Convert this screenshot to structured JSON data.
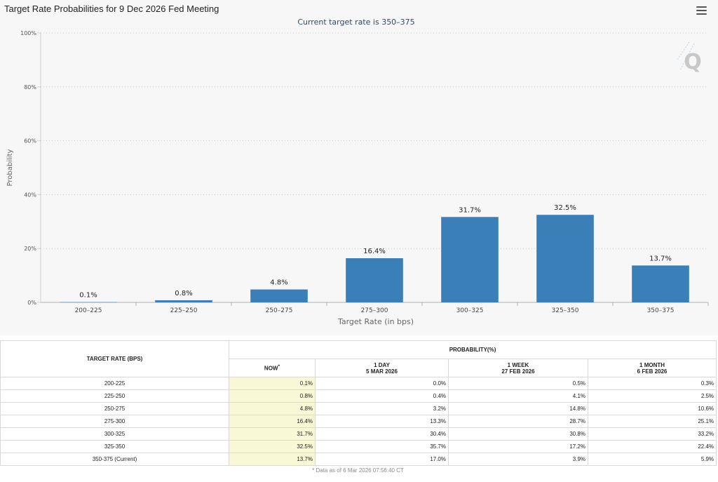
{
  "header": {
    "title": "Target Rate Probabilities for 9 Dec 2026 Fed Meeting",
    "menu_icon": "hamburger-menu-icon",
    "watermark_text": "Q"
  },
  "chart_data": {
    "type": "bar",
    "subtitle": "Current target rate is 350–375",
    "xlabel": "Target Rate (in bps)",
    "ylabel": "Probability",
    "categories": [
      "200–225",
      "225–250",
      "250–275",
      "275–300",
      "300–325",
      "325–350",
      "350–375"
    ],
    "values": [
      0.1,
      0.8,
      4.8,
      16.4,
      31.7,
      32.5,
      13.7
    ],
    "value_labels": [
      "0.1%",
      "0.8%",
      "4.8%",
      "16.4%",
      "31.7%",
      "32.5%",
      "13.7%"
    ],
    "ylim": [
      0,
      100
    ],
    "yticks": [
      0,
      20,
      40,
      60,
      80,
      100
    ],
    "ytick_labels": [
      "0%",
      "20%",
      "40%",
      "60%",
      "80%",
      "100%"
    ],
    "grid": true,
    "bar_color": "#3a7fb8"
  },
  "table": {
    "col_target": "TARGET RATE (BPS)",
    "col_probability": "PROBABILITY(%)",
    "col_now": "NOW",
    "col_now_mark": "*",
    "col_1day": "1 DAY",
    "col_1day_date": "5 MAR 2026",
    "col_1week": "1 WEEK",
    "col_1week_date": "27 FEB 2026",
    "col_1month": "1 MONTH",
    "col_1month_date": "6 FEB 2026",
    "rows": [
      {
        "rate": "200-225",
        "now": "0.1%",
        "day1": "0.0%",
        "week1": "0.5%",
        "month1": "0.3%"
      },
      {
        "rate": "225-250",
        "now": "0.8%",
        "day1": "0.4%",
        "week1": "4.1%",
        "month1": "2.5%"
      },
      {
        "rate": "250-275",
        "now": "4.8%",
        "day1": "3.2%",
        "week1": "14.8%",
        "month1": "10.6%"
      },
      {
        "rate": "275-300",
        "now": "16.4%",
        "day1": "13.3%",
        "week1": "28.7%",
        "month1": "25.1%"
      },
      {
        "rate": "300-325",
        "now": "31.7%",
        "day1": "30.4%",
        "week1": "30.8%",
        "month1": "33.2%"
      },
      {
        "rate": "325-350",
        "now": "32.5%",
        "day1": "35.7%",
        "week1": "17.2%",
        "month1": "22.4%"
      },
      {
        "rate": "350-375 (Current)",
        "now": "13.7%",
        "day1": "17.0%",
        "week1": "3.9%",
        "month1": "5.9%"
      }
    ],
    "note": "* Data as of 6 Mar 2026 07:56:40 CT"
  }
}
